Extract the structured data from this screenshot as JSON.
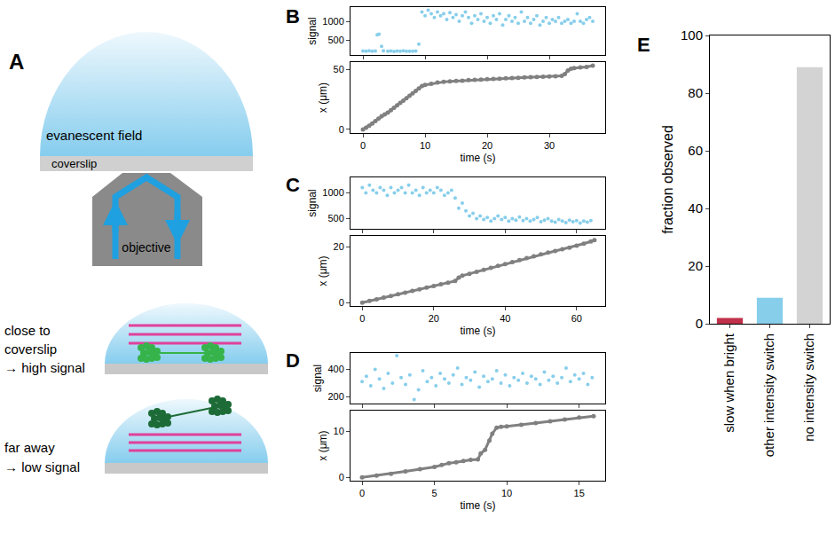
{
  "diagram": {
    "label": "A",
    "dome_text": "evanescent field",
    "coverslip": "coverslip",
    "objective": "objective",
    "cases": [
      {
        "lines": [
          "close to",
          "coverslip",
          "→ high signal"
        ]
      },
      {
        "lines": [
          "far away",
          "→ low signal"
        ]
      }
    ]
  },
  "chart_data": [
    {
      "label": "B",
      "type": "scatter",
      "y_label": "signal",
      "color": "#87ceeb",
      "marker": "circle",
      "tick_labels": "y",
      "x": [
        0,
        0.5,
        1,
        1.5,
        2,
        2.3,
        2.6,
        3,
        3.3,
        4,
        4.5,
        5,
        5.5,
        6,
        6.5,
        7,
        7.5,
        8,
        8.5,
        9,
        9.5,
        10,
        10.5,
        11,
        11.5,
        12,
        12.5,
        13,
        13.5,
        14,
        14.5,
        15,
        15.5,
        16,
        16.5,
        17,
        17.5,
        18,
        18.5,
        19,
        19.5,
        20,
        20.5,
        21,
        21.5,
        22,
        22.5,
        23,
        23.5,
        24,
        24.5,
        25,
        25.5,
        26,
        26.5,
        27,
        27.5,
        28,
        28.5,
        29,
        29.5,
        30,
        30.5,
        31,
        31.5,
        32,
        32.5,
        33,
        33.5,
        34,
        34.5,
        35,
        35.5,
        36,
        36.5,
        37
      ],
      "values": [
        205,
        200,
        210,
        198,
        205,
        640,
        660,
        330,
        210,
        200,
        207,
        195,
        205,
        200,
        210,
        198,
        203,
        200,
        205,
        390,
        1250,
        1150,
        1300,
        1200,
        1100,
        1250,
        1150,
        1200,
        1050,
        1230,
        1100,
        1180,
        1000,
        1150,
        1250,
        1100,
        950,
        1150,
        1050,
        1200,
        1000,
        1100,
        950,
        1150,
        1050,
        1200,
        900,
        1050,
        1150,
        1000,
        1100,
        950,
        1250,
        1000,
        1100,
        950,
        1050,
        1150,
        900,
        1000,
        1100,
        950,
        1050,
        1000,
        1100,
        950,
        1000,
        1050,
        950,
        1000,
        1200,
        1000,
        950,
        1050,
        1100,
        1000
      ],
      "xlim": [
        -2,
        39
      ],
      "xticks": [
        0,
        10,
        20,
        30
      ],
      "ylim": [
        100,
        1380
      ],
      "yticks": [
        500,
        1000
      ]
    },
    {
      "type": "scatter",
      "x_label": "time (s)",
      "y_label": "x (μm)",
      "color": "#808080",
      "marker": "circle",
      "line_style": "solid",
      "x": [
        0,
        0.5,
        1,
        1.5,
        2,
        2.5,
        3,
        3.5,
        4,
        4.5,
        5,
        5.5,
        6,
        6.5,
        7,
        7.5,
        8,
        8.5,
        9,
        9.5,
        10,
        11,
        12,
        13,
        14,
        15,
        16,
        17,
        18,
        19,
        20,
        21,
        22,
        23,
        24,
        25,
        26,
        27,
        28,
        29,
        30,
        31,
        32,
        32.5,
        33,
        33.5,
        34,
        35,
        36,
        37
      ],
      "values": [
        0,
        1.5,
        3,
        5,
        7,
        9,
        11,
        12.5,
        14,
        16,
        18,
        20,
        22,
        24,
        26,
        28,
        30,
        32,
        34,
        36,
        37,
        38,
        39,
        39.5,
        40,
        40.3,
        40.6,
        41,
        41.2,
        41.5,
        41.8,
        42,
        42.2,
        42.5,
        42.7,
        43,
        43.2,
        43.4,
        43.6,
        43.8,
        44,
        44.2,
        44.6,
        46,
        49,
        50.5,
        51,
        51.5,
        52,
        53
      ],
      "xlim": [
        -2,
        39
      ],
      "xticks": [
        0,
        10,
        20,
        30
      ],
      "ylim": [
        -3,
        56
      ],
      "yticks": [
        0,
        50
      ]
    },
    {
      "label": "C",
      "type": "scatter",
      "y_label": "signal",
      "color": "#87ceeb",
      "marker": "circle",
      "tick_labels": "y",
      "x": [
        0,
        1,
        2,
        3,
        4,
        5,
        6,
        7,
        8,
        9,
        10,
        11,
        12,
        13,
        14,
        15,
        16,
        17,
        18,
        19,
        20,
        21,
        22,
        23,
        24,
        25,
        26,
        27,
        28,
        29,
        30,
        31,
        32,
        33,
        34,
        35,
        36,
        37,
        38,
        39,
        40,
        41,
        42,
        43,
        44,
        45,
        46,
        47,
        48,
        49,
        50,
        51,
        52,
        53,
        54,
        55,
        56,
        57,
        58,
        59,
        60,
        61,
        62,
        63,
        64
      ],
      "values": [
        1100,
        1000,
        1150,
        1050,
        1000,
        1100,
        1050,
        950,
        1100,
        1000,
        1050,
        1100,
        1000,
        1150,
        1000,
        1050,
        950,
        1100,
        1000,
        1050,
        1000,
        1100,
        1050,
        950,
        1000,
        1050,
        900,
        700,
        800,
        650,
        550,
        600,
        500,
        550,
        480,
        520,
        450,
        500,
        550,
        480,
        520,
        450,
        500,
        470,
        530,
        460,
        500,
        450,
        480,
        520,
        440,
        470,
        500,
        450,
        430,
        480,
        450,
        420,
        470,
        440,
        460,
        410,
        450,
        430,
        460
      ],
      "xlim": [
        -3.3,
        68
      ],
      "xticks": [
        0,
        20,
        40,
        60
      ],
      "ylim": [
        300,
        1300
      ],
      "yticks": [
        500,
        1000
      ]
    },
    {
      "type": "scatter",
      "x_label": "time (s)",
      "y_label": "x (μm)",
      "color": "#808080",
      "marker": "circle",
      "line_style": "solid",
      "x": [
        0,
        2,
        4,
        6,
        8,
        10,
        12,
        14,
        16,
        18,
        20,
        22,
        24,
        26,
        27,
        28,
        30,
        32,
        34,
        36,
        38,
        40,
        42,
        44,
        46,
        48,
        50,
        52,
        54,
        56,
        58,
        60,
        62,
        64,
        65
      ],
      "values": [
        0,
        0.6,
        1.2,
        1.8,
        2.4,
        3,
        3.6,
        4.2,
        4.8,
        5.4,
        6,
        6.6,
        7.2,
        7.8,
        9,
        9.7,
        10.4,
        11.1,
        11.8,
        12.5,
        13.2,
        13.9,
        14.6,
        15.3,
        16,
        16.7,
        17.4,
        18,
        18.6,
        19.2,
        19.8,
        20.5,
        21.2,
        22,
        22.5
      ],
      "xlim": [
        -3.3,
        68
      ],
      "xticks": [
        0,
        20,
        40,
        60
      ],
      "ylim": [
        -1.2,
        24
      ],
      "yticks": [
        0,
        20
      ]
    },
    {
      "label": "D",
      "type": "scatter",
      "y_label": "signal",
      "color": "#87ceeb",
      "marker": "circle",
      "tick_labels": "y",
      "x": [
        0,
        0.3,
        0.6,
        0.9,
        1.2,
        1.5,
        1.8,
        2.1,
        2.4,
        2.7,
        3,
        3.3,
        3.6,
        3.9,
        4.2,
        4.5,
        4.8,
        5.1,
        5.4,
        5.7,
        6,
        6.3,
        6.6,
        6.9,
        7.2,
        7.5,
        7.8,
        8.1,
        8.4,
        8.7,
        9,
        9.3,
        9.6,
        9.9,
        10.2,
        10.5,
        10.8,
        11.1,
        11.4,
        11.7,
        12,
        12.3,
        12.6,
        12.9,
        13.2,
        13.5,
        13.8,
        14.1,
        14.4,
        14.7,
        15,
        15.3,
        15.6,
        15.9
      ],
      "values": [
        310,
        350,
        280,
        400,
        330,
        260,
        370,
        300,
        500,
        340,
        290,
        360,
        180,
        250,
        390,
        310,
        340,
        280,
        370,
        330,
        300,
        360,
        410,
        290,
        340,
        320,
        380,
        270,
        350,
        310,
        330,
        390,
        300,
        360,
        280,
        340,
        320,
        370,
        300,
        350,
        330,
        290,
        380,
        320,
        350,
        300,
        340,
        410,
        310,
        360,
        330,
        370,
        290,
        340
      ],
      "xlim": [
        -0.8,
        16.8
      ],
      "xticks": [
        0,
        5,
        10,
        15
      ],
      "ylim": [
        150,
        520
      ],
      "yticks": [
        200,
        400
      ]
    },
    {
      "type": "scatter",
      "x_label": "time (s)",
      "y_label": "x (μm)",
      "color": "#808080",
      "marker": "circle",
      "line_style": "solid",
      "x": [
        0,
        1,
        2,
        3,
        4,
        5,
        5.5,
        6,
        6.5,
        7,
        7.5,
        8,
        8.2,
        8.5,
        8.8,
        9,
        9.3,
        9.6,
        10,
        11,
        12,
        13,
        14,
        15,
        16
      ],
      "values": [
        0,
        0.4,
        0.8,
        1.3,
        1.8,
        2.3,
        2.7,
        3.1,
        3.3,
        3.6,
        3.8,
        3.9,
        5.2,
        6,
        8,
        9.5,
        10.8,
        11,
        11.1,
        11.4,
        11.8,
        12.2,
        12.6,
        13,
        13.3
      ],
      "xlim": [
        -0.8,
        16.8
      ],
      "xticks": [
        0,
        5,
        10,
        15
      ],
      "ylim": [
        -0.7,
        14.5
      ],
      "yticks": [
        0,
        10
      ]
    },
    {
      "label": "E",
      "type": "bar",
      "y_label": "fraction observed",
      "categories": [
        "slow when bright",
        "other intensity switch",
        "no intensity switch"
      ],
      "values": [
        2,
        9,
        89
      ],
      "colors": [
        "#c0304a",
        "#87ceeb",
        "#d3d3d3"
      ],
      "ylim": [
        0,
        100
      ],
      "yticks": [
        0,
        20,
        40,
        60,
        80,
        100
      ]
    }
  ]
}
